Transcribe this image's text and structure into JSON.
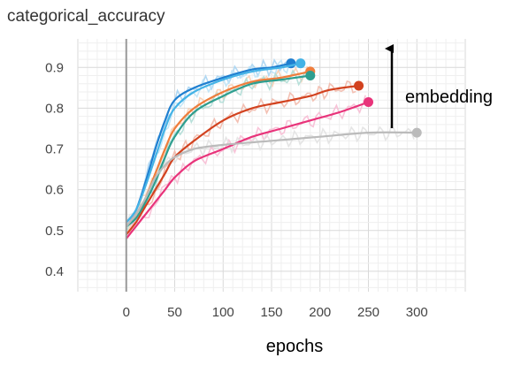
{
  "chart_data": {
    "type": "line",
    "title": "categorical_accuracy",
    "xlabel": "epochs",
    "ylabel": "",
    "xlim": [
      -50,
      350
    ],
    "ylim": [
      0.35,
      0.97
    ],
    "x_ticks": [
      0,
      50,
      100,
      150,
      200,
      250,
      300
    ],
    "y_ticks": [
      0.4,
      0.5,
      0.6,
      0.7,
      0.8,
      0.9
    ],
    "grid": true,
    "annotation": {
      "text": "embedding",
      "arrow": "up"
    },
    "series": [
      {
        "color": "#1f7fd0",
        "raw_color": "#a9d4f2",
        "points": [
          [
            0,
            0.52
          ],
          [
            10,
            0.55
          ],
          [
            20,
            0.62
          ],
          [
            30,
            0.7
          ],
          [
            40,
            0.77
          ],
          [
            50,
            0.82
          ],
          [
            70,
            0.85
          ],
          [
            100,
            0.875
          ],
          [
            130,
            0.895
          ],
          [
            150,
            0.9
          ],
          [
            170,
            0.91
          ]
        ]
      },
      {
        "color": "#44b3e6",
        "raw_color": "#bfe4f7",
        "points": [
          [
            0,
            0.52
          ],
          [
            10,
            0.55
          ],
          [
            20,
            0.61
          ],
          [
            30,
            0.68
          ],
          [
            40,
            0.75
          ],
          [
            50,
            0.8
          ],
          [
            70,
            0.84
          ],
          [
            100,
            0.87
          ],
          [
            130,
            0.89
          ],
          [
            160,
            0.9
          ],
          [
            180,
            0.91
          ]
        ]
      },
      {
        "color": "#ef7d3c",
        "raw_color": "#f9cfb4",
        "points": [
          [
            0,
            0.51
          ],
          [
            10,
            0.54
          ],
          [
            20,
            0.58
          ],
          [
            30,
            0.64
          ],
          [
            40,
            0.7
          ],
          [
            50,
            0.75
          ],
          [
            70,
            0.8
          ],
          [
            100,
            0.84
          ],
          [
            130,
            0.865
          ],
          [
            160,
            0.875
          ],
          [
            190,
            0.89
          ]
        ]
      },
      {
        "color": "#2e9e8f",
        "raw_color": "#b0ddd6",
        "points": [
          [
            0,
            0.51
          ],
          [
            10,
            0.53
          ],
          [
            20,
            0.57
          ],
          [
            30,
            0.62
          ],
          [
            40,
            0.68
          ],
          [
            50,
            0.73
          ],
          [
            70,
            0.79
          ],
          [
            100,
            0.83
          ],
          [
            130,
            0.86
          ],
          [
            160,
            0.87
          ],
          [
            190,
            0.88
          ]
        ]
      },
      {
        "color": "#d2421f",
        "raw_color": "#f2b9ab",
        "points": [
          [
            0,
            0.49
          ],
          [
            10,
            0.52
          ],
          [
            20,
            0.56
          ],
          [
            30,
            0.6
          ],
          [
            40,
            0.64
          ],
          [
            50,
            0.68
          ],
          [
            70,
            0.72
          ],
          [
            100,
            0.77
          ],
          [
            130,
            0.8
          ],
          [
            160,
            0.815
          ],
          [
            190,
            0.83
          ],
          [
            210,
            0.845
          ],
          [
            240,
            0.855
          ]
        ]
      },
      {
        "color": "#e8337a",
        "raw_color": "#f7bcd4",
        "points": [
          [
            0,
            0.48
          ],
          [
            10,
            0.51
          ],
          [
            20,
            0.54
          ],
          [
            30,
            0.57
          ],
          [
            40,
            0.6
          ],
          [
            50,
            0.63
          ],
          [
            70,
            0.67
          ],
          [
            100,
            0.7
          ],
          [
            130,
            0.73
          ],
          [
            160,
            0.75
          ],
          [
            190,
            0.77
          ],
          [
            220,
            0.79
          ],
          [
            250,
            0.815
          ]
        ]
      },
      {
        "color": "#bbbbbb",
        "raw_color": "#e2e2e2",
        "points": [
          [
            0,
            0.51
          ],
          [
            10,
            0.54
          ],
          [
            20,
            0.58
          ],
          [
            30,
            0.63
          ],
          [
            40,
            0.66
          ],
          [
            50,
            0.68
          ],
          [
            70,
            0.7
          ],
          [
            100,
            0.71
          ],
          [
            150,
            0.72
          ],
          [
            200,
            0.73
          ],
          [
            250,
            0.74
          ],
          [
            300,
            0.74
          ]
        ]
      }
    ]
  }
}
